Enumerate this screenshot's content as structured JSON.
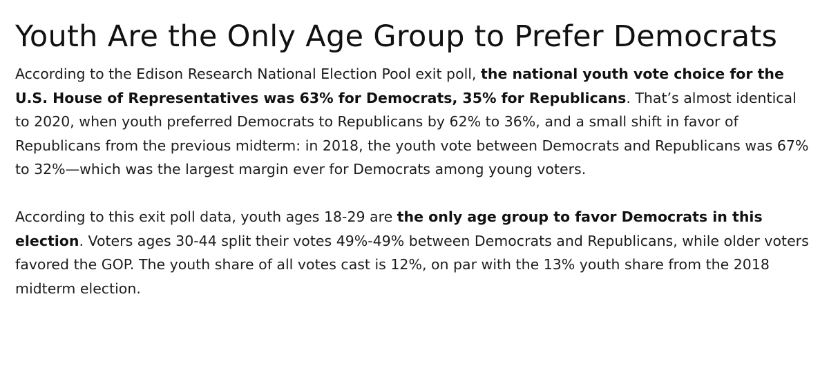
{
  "article": {
    "title": "Youth Are the Only Age Group to Prefer Democrats",
    "paragraph1": {
      "intro": "According to the Edison Research National Election Pool exit poll, ",
      "bold": "the national youth vote choice for the U.S. House of Representatives was 63% for Democrats, 35% for Republicans",
      "rest": ". That’s almost identical to 2020, when youth preferred Democrats to Republicans by 62% to 36%, and a small shift in favor of Republicans from the previous midterm: in 2018, the youth vote between Democrats and Republicans was 67% to 32%—which was the largest margin ever for Democrats among young voters."
    },
    "paragraph2": {
      "intro": "According to this exit poll data, youth ages 18-29 are ",
      "bold": "the only age group to favor Democrats in this election",
      "rest": ". Voters ages 30-44 split their votes 49%-49% between Democrats and Republicans, while older voters favored the GOP. The youth share of all votes cast is 12%, on par with the 13% youth share from the 2018 midterm election."
    }
  }
}
